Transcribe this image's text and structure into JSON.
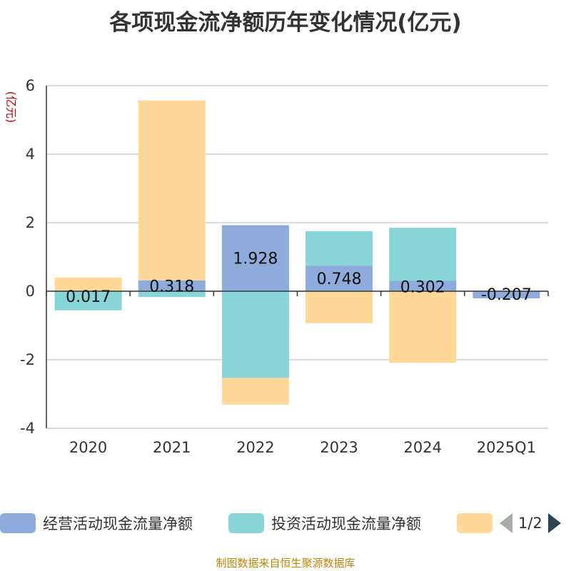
{
  "title": "各项现金流净额历年变化情况(亿元)",
  "source": "制图数据来自恒生聚源数据库",
  "legend_pager": "1/2",
  "chart_data": {
    "type": "bar",
    "stacked": true,
    "title": "各项现金流净额历年变化情况(亿元)",
    "ylabel": "(亿元)",
    "ylim": [
      -4,
      6
    ],
    "yticks": [
      6,
      4,
      2,
      0,
      -2,
      -4
    ],
    "grid": true,
    "legend_position": "bottom",
    "categories": [
      "2020",
      "2021",
      "2022",
      "2023",
      "2024",
      "2025Q1"
    ],
    "series": [
      {
        "name": "经营活动现金流量净额",
        "color": "#8eacdb",
        "values": [
          0.017,
          0.318,
          1.928,
          0.748,
          0.302,
          -0.207
        ],
        "labels": [
          "0.017",
          "0.318",
          "1.928",
          "0.748",
          "0.302",
          "-0.207"
        ]
      },
      {
        "name": "投资活动现金流量净额",
        "color": "#88d5d8",
        "values": [
          -0.56,
          -0.17,
          -2.53,
          1.0,
          1.55,
          0
        ]
      },
      {
        "name": "",
        "color": "#ffd898",
        "values": [
          0.38,
          5.25,
          -0.78,
          -0.93,
          -2.09,
          0
        ]
      }
    ]
  }
}
